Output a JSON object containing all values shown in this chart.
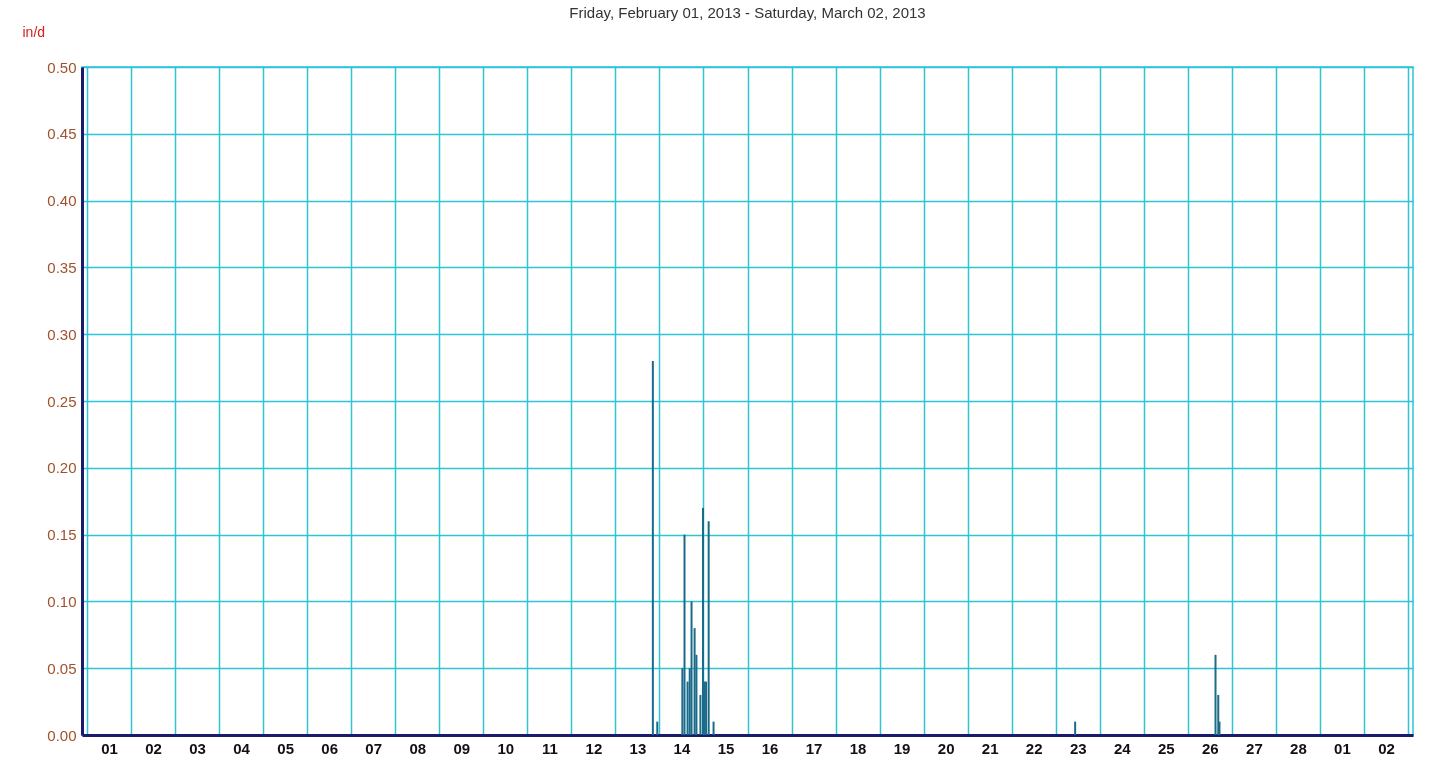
{
  "chart_data": {
    "type": "bar",
    "title": "Friday, February 01, 2013 - Saturday, March 02, 2013",
    "ylabel": "in/d",
    "x": [
      "2013-02-13T20:25",
      "2013-02-13T22:50",
      "2013-02-14T12:30",
      "2013-02-14T13:40",
      "2013-02-14T15:20",
      "2013-02-14T16:30",
      "2013-02-14T17:30",
      "2013-02-14T19:10",
      "2013-02-14T20:10",
      "2013-02-14T22:20",
      "2013-02-14T23:45",
      "2013-02-15T00:30",
      "2013-02-15T01:25",
      "2013-02-15T02:50",
      "2013-02-15T05:30",
      "2013-02-23T10:35",
      "2013-02-26T15:05",
      "2013-02-26T16:35",
      "2013-02-26T17:15"
    ],
    "series": [
      {
        "color": "#1a6b8a",
        "values": [
          0.28,
          0.01,
          0.05,
          0.15,
          0.04,
          0.05,
          0.1,
          0.08,
          0.06,
          0.03,
          0.17,
          0.04,
          0.04,
          0.16,
          0.01,
          0.01,
          0.06,
          0.03,
          0.01
        ]
      }
    ],
    "xlim": [
      "2013-02-01T00:00",
      "2013-03-03T00:00"
    ],
    "xticks": [
      {
        "value": "2013-02-01T00:00",
        "label": null
      },
      {
        "value": "2013-02-01T12:00",
        "label": "01"
      },
      {
        "value": "2013-02-02T00:00",
        "label": null
      },
      {
        "value": "2013-02-02T12:00",
        "label": "02"
      },
      {
        "value": "2013-02-03T00:00",
        "label": null
      },
      {
        "value": "2013-02-03T12:00",
        "label": "03"
      },
      {
        "value": "2013-02-04T00:00",
        "label": null
      },
      {
        "value": "2013-02-04T12:00",
        "label": "04"
      },
      {
        "value": "2013-02-05T00:00",
        "label": null
      },
      {
        "value": "2013-02-05T12:00",
        "label": "05"
      },
      {
        "value": "2013-02-06T00:00",
        "label": null
      },
      {
        "value": "2013-02-06T12:00",
        "label": "06"
      },
      {
        "value": "2013-02-07T00:00",
        "label": null
      },
      {
        "value": "2013-02-07T12:00",
        "label": "07"
      },
      {
        "value": "2013-02-08T00:00",
        "label": null
      },
      {
        "value": "2013-02-08T12:00",
        "label": "08"
      },
      {
        "value": "2013-02-09T00:00",
        "label": null
      },
      {
        "value": "2013-02-09T12:00",
        "label": "09"
      },
      {
        "value": "2013-02-10T00:00",
        "label": null
      },
      {
        "value": "2013-02-10T12:00",
        "label": "10"
      },
      {
        "value": "2013-02-11T00:00",
        "label": null
      },
      {
        "value": "2013-02-11T12:00",
        "label": "11"
      },
      {
        "value": "2013-02-12T00:00",
        "label": null
      },
      {
        "value": "2013-02-12T12:00",
        "label": "12"
      },
      {
        "value": "2013-02-13T00:00",
        "label": null
      },
      {
        "value": "2013-02-13T12:00",
        "label": "13"
      },
      {
        "value": "2013-02-14T00:00",
        "label": null
      },
      {
        "value": "2013-02-14T12:00",
        "label": "14"
      },
      {
        "value": "2013-02-15T00:00",
        "label": null
      },
      {
        "value": "2013-02-15T12:00",
        "label": "15"
      },
      {
        "value": "2013-02-16T00:00",
        "label": null
      },
      {
        "value": "2013-02-16T12:00",
        "label": "16"
      },
      {
        "value": "2013-02-17T00:00",
        "label": null
      },
      {
        "value": "2013-02-17T12:00",
        "label": "17"
      },
      {
        "value": "2013-02-18T00:00",
        "label": null
      },
      {
        "value": "2013-02-18T12:00",
        "label": "18"
      },
      {
        "value": "2013-02-19T00:00",
        "label": null
      },
      {
        "value": "2013-02-19T12:00",
        "label": "19"
      },
      {
        "value": "2013-02-20T00:00",
        "label": null
      },
      {
        "value": "2013-02-20T12:00",
        "label": "20"
      },
      {
        "value": "2013-02-21T00:00",
        "label": null
      },
      {
        "value": "2013-02-21T12:00",
        "label": "21"
      },
      {
        "value": "2013-02-22T00:00",
        "label": null
      },
      {
        "value": "2013-02-22T12:00",
        "label": "22"
      },
      {
        "value": "2013-02-23T00:00",
        "label": null
      },
      {
        "value": "2013-02-23T12:00",
        "label": "23"
      },
      {
        "value": "2013-02-24T00:00",
        "label": null
      },
      {
        "value": "2013-02-24T12:00",
        "label": "24"
      },
      {
        "value": "2013-02-25T00:00",
        "label": null
      },
      {
        "value": "2013-02-25T12:00",
        "label": "25"
      },
      {
        "value": "2013-02-26T00:00",
        "label": null
      },
      {
        "value": "2013-02-26T12:00",
        "label": "26"
      },
      {
        "value": "2013-02-27T00:00",
        "label": null
      },
      {
        "value": "2013-02-27T12:00",
        "label": "27"
      },
      {
        "value": "2013-02-28T00:00",
        "label": null
      },
      {
        "value": "2013-02-28T12:00",
        "label": "28"
      },
      {
        "value": "2013-03-01T00:00",
        "label": null
      },
      {
        "value": "2013-03-01T12:00",
        "label": "01"
      },
      {
        "value": "2013-03-02T00:00",
        "label": null
      },
      {
        "value": "2013-03-02T12:00",
        "label": "02"
      },
      {
        "value": "2013-03-03T00:00",
        "label": null
      }
    ],
    "ylim": [
      0,
      0.5
    ],
    "yticks": [
      {
        "value": 0,
        "label": "0.00"
      },
      {
        "value": 0.05,
        "label": "0.05"
      },
      {
        "value": 0.1,
        "label": "0.10"
      },
      {
        "value": 0.15,
        "label": "0.15"
      },
      {
        "value": 0.2,
        "label": "0.20"
      },
      {
        "value": 0.25,
        "label": "0.25"
      },
      {
        "value": 0.3,
        "label": "0.30"
      },
      {
        "value": 0.35,
        "label": "0.35"
      },
      {
        "value": 0.4,
        "label": "0.40"
      },
      {
        "value": 0.45,
        "label": "0.45"
      },
      {
        "value": 0.5,
        "label": "0.50"
      }
    ],
    "grid": true
  }
}
